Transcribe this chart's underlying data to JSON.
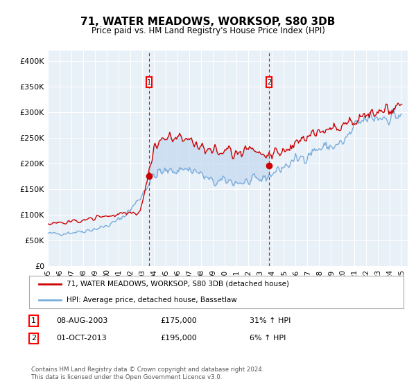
{
  "title": "71, WATER MEADOWS, WORKSOP, S80 3DB",
  "subtitle": "Price paid vs. HM Land Registry's House Price Index (HPI)",
  "legend_entry1": "71, WATER MEADOWS, WORKSOP, S80 3DB (detached house)",
  "legend_entry2": "HPI: Average price, detached house, Bassetlaw",
  "annotation1_label": "1",
  "annotation1_date": "08-AUG-2003",
  "annotation1_price": "£175,000",
  "annotation1_hpi": "31% ↑ HPI",
  "annotation1_year": 2003.583,
  "annotation1_value": 175000,
  "annotation2_label": "2",
  "annotation2_date": "01-OCT-2013",
  "annotation2_price": "£195,000",
  "annotation2_hpi": "6% ↑ HPI",
  "annotation2_year": 2013.75,
  "annotation2_value": 195000,
  "footer": "Contains HM Land Registry data © Crown copyright and database right 2024.\nThis data is licensed under the Open Government Licence v3.0.",
  "background_color": "#ffffff",
  "plot_bg_color": "#e8f0f8",
  "fill_color": "#c5d8f0",
  "red_color": "#cc0000",
  "blue_color": "#7aaddb",
  "ylim": [
    0,
    420000
  ],
  "yticks": [
    0,
    50000,
    100000,
    150000,
    200000,
    250000,
    300000,
    350000,
    400000
  ],
  "ytick_labels": [
    "£0",
    "£50K",
    "£100K",
    "£150K",
    "£200K",
    "£250K",
    "£300K",
    "£350K",
    "£400K"
  ],
  "hpi_annual_years": [
    1995,
    1996,
    1997,
    1998,
    1999,
    2000,
    2001,
    2002,
    2003,
    2004,
    2005,
    2006,
    2007,
    2008,
    2009,
    2010,
    2011,
    2012,
    2013,
    2014,
    2015,
    2016,
    2017,
    2018,
    2019,
    2020,
    2021,
    2022,
    2023,
    2024,
    2025
  ],
  "hpi_annual_values": [
    63000,
    63000,
    65000,
    68000,
    72000,
    78000,
    90000,
    110000,
    140000,
    175000,
    183000,
    188000,
    188000,
    178000,
    163000,
    165000,
    163000,
    163000,
    168000,
    180000,
    193000,
    205000,
    218000,
    228000,
    233000,
    240000,
    268000,
    285000,
    290000,
    292000,
    295000
  ],
  "red_annual_years": [
    1995,
    1996,
    1997,
    1998,
    1999,
    2000,
    2001,
    2002,
    2003,
    2004,
    2005,
    2006,
    2007,
    2008,
    2009,
    2010,
    2011,
    2012,
    2013,
    2014,
    2015,
    2016,
    2017,
    2018,
    2019,
    2020,
    2021,
    2022,
    2023,
    2024,
    2025
  ],
  "red_annual_values": [
    82000,
    83000,
    86000,
    88000,
    92000,
    97000,
    100000,
    103000,
    120000,
    228000,
    248000,
    250000,
    248000,
    235000,
    225000,
    222000,
    222000,
    223000,
    225000,
    218000,
    225000,
    238000,
    250000,
    260000,
    265000,
    270000,
    285000,
    295000,
    295000,
    305000,
    305000
  ],
  "xlabel_years": [
    "95",
    "96",
    "97",
    "98",
    "99",
    "00",
    "01",
    "02",
    "03",
    "04",
    "05",
    "06",
    "07",
    "08",
    "09",
    "10",
    "11",
    "12",
    "13",
    "14",
    "15",
    "16",
    "17",
    "18",
    "19",
    "20",
    "21",
    "22",
    "23",
    "24",
    "25"
  ],
  "xlabel_year_vals": [
    1995,
    1996,
    1997,
    1998,
    1999,
    2000,
    2001,
    2002,
    2003,
    2004,
    2005,
    2006,
    2007,
    2008,
    2009,
    2010,
    2011,
    2012,
    2013,
    2014,
    2015,
    2016,
    2017,
    2018,
    2019,
    2020,
    2021,
    2022,
    2023,
    2024,
    2025
  ]
}
